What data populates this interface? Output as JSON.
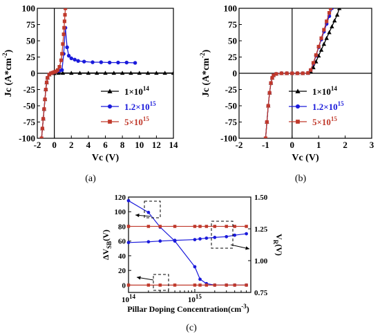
{
  "chart_data": [
    {
      "panel": "a",
      "type": "line",
      "caption": "(a)",
      "xlabel": "Vc (V)",
      "ylabel_base": "Jc (A*cm",
      "ylabel_sup": "-2",
      "ylabel_tail": ")",
      "xlim": [
        -2,
        14
      ],
      "ylim": [
        -100,
        100
      ],
      "x_ticks": [
        -2,
        0,
        2,
        4,
        6,
        8,
        10,
        12,
        14
      ],
      "y_ticks": [
        -100,
        -75,
        -50,
        -25,
        0,
        25,
        50,
        75,
        100
      ],
      "x_tick_labels": [
        "-2",
        "0",
        "2",
        "4",
        "6",
        "8",
        "10",
        "12",
        "14"
      ],
      "y_tick_labels": [
        "-100",
        "-75",
        "-50",
        "-25",
        "0",
        "25",
        "50",
        "75",
        "100"
      ],
      "legend": [
        {
          "base": "1×10",
          "sup": "14",
          "color": "#000000",
          "marker": "triangle"
        },
        {
          "base": "1.2×10",
          "sup": "15",
          "color": "#1a1adb",
          "marker": "circle"
        },
        {
          "base": "5×10",
          "sup": "15",
          "color": "#c0392b",
          "marker": "square"
        }
      ],
      "series": [
        {
          "color": "#000000",
          "marker": "triangle",
          "x": [
            -1.5,
            -1.4,
            -1.3,
            -1.2,
            -1.1,
            -1.0,
            -0.9,
            -0.8,
            -0.6,
            -0.4,
            -0.2,
            0,
            0.5,
            1,
            2,
            3,
            4,
            5,
            6,
            7,
            8,
            9,
            10,
            11,
            12,
            13,
            14
          ],
          "y": [
            -100,
            -85,
            -70,
            -55,
            -40,
            -25,
            -14,
            -7,
            -2,
            0,
            0,
            0,
            0.5,
            0.5,
            0.5,
            0.5,
            0.5,
            0.5,
            0.5,
            0.5,
            0.5,
            0.5,
            0.5,
            0.5,
            0.5,
            0.5,
            0.5
          ]
        },
        {
          "color": "#1a1adb",
          "marker": "circle",
          "x": [
            -1.5,
            -1.4,
            -1.3,
            -1.2,
            -1.1,
            -1.0,
            -0.9,
            -0.8,
            -0.6,
            -0.4,
            -0.2,
            0,
            0.3,
            0.6,
            0.9,
            1.1,
            1.3,
            1.5,
            1.7,
            2.0,
            2.4,
            2.8,
            3.5,
            4.5,
            5.5,
            6.5,
            7.5,
            8.5,
            9.5
          ],
          "y": [
            -100,
            -85,
            -70,
            -55,
            -40,
            -25,
            -14,
            -7,
            -2,
            0,
            1,
            2,
            3,
            4,
            5,
            30,
            70,
            40,
            27,
            23,
            21,
            19,
            18,
            17,
            17,
            16.5,
            16.5,
            16.5,
            16
          ]
        },
        {
          "color": "#c0392b",
          "marker": "square",
          "x": [
            -1.5,
            -1.4,
            -1.3,
            -1.2,
            -1.1,
            -1.0,
            -0.9,
            -0.8,
            -0.6,
            -0.4,
            -0.2,
            0,
            0.2,
            0.4,
            0.6,
            0.8,
            0.9,
            1.0,
            1.1,
            1.15,
            1.2,
            1.25,
            1.3
          ],
          "y": [
            -100,
            -85,
            -70,
            -55,
            -40,
            -25,
            -14,
            -7,
            -2,
            0,
            1,
            2,
            3,
            5,
            10,
            20,
            30,
            45,
            60,
            70,
            80,
            90,
            100
          ]
        }
      ]
    },
    {
      "panel": "b",
      "type": "line",
      "caption": "(b)",
      "xlabel": "Vc (V)",
      "ylabel_base": "Jc (A*cm",
      "ylabel_sup": "-2",
      "ylabel_tail": ")",
      "xlim": [
        -2,
        3
      ],
      "ylim": [
        -100,
        100
      ],
      "x_ticks": [
        -2,
        -1,
        0,
        1,
        2,
        3
      ],
      "y_ticks": [
        -100,
        -75,
        -50,
        -25,
        0,
        25,
        50,
        75,
        100
      ],
      "x_tick_labels": [
        "-2",
        "-1",
        "0",
        "1",
        "2",
        "3"
      ],
      "y_tick_labels": [
        "-100",
        "-75",
        "-50",
        "-25",
        "0",
        "25",
        "50",
        "75",
        "100"
      ],
      "legend": [
        {
          "base": "1×10",
          "sup": "14",
          "color": "#000000",
          "marker": "triangle"
        },
        {
          "base": "1.2×10",
          "sup": "15",
          "color": "#1a1adb",
          "marker": "circle"
        },
        {
          "base": "5×10",
          "sup": "15",
          "color": "#c0392b",
          "marker": "square"
        }
      ],
      "series": [
        {
          "color": "#000000",
          "marker": "triangle",
          "x": [
            -1.0,
            -0.95,
            -0.9,
            -0.85,
            -0.8,
            -0.75,
            -0.7,
            -0.6,
            -0.4,
            -0.2,
            0,
            0.2,
            0.4,
            0.6,
            0.7,
            0.8,
            0.9,
            1.0,
            1.1,
            1.2,
            1.3,
            1.4,
            1.5,
            1.6,
            1.7,
            1.78
          ],
          "y": [
            -100,
            -75,
            -50,
            -30,
            -15,
            -7,
            -3,
            -1,
            0,
            0,
            0,
            0,
            0,
            0.5,
            3,
            9,
            18,
            27,
            36,
            45,
            54,
            63,
            72,
            81,
            90,
            100
          ]
        },
        {
          "color": "#1a1adb",
          "marker": "circle",
          "x": [
            -1.0,
            -0.95,
            -0.9,
            -0.85,
            -0.8,
            -0.75,
            -0.7,
            -0.6,
            -0.4,
            -0.2,
            0,
            0.2,
            0.4,
            0.6,
            0.7,
            0.8,
            0.9,
            1.0,
            1.1,
            1.2,
            1.3,
            1.4,
            1.5
          ],
          "y": [
            -100,
            -75,
            -50,
            -30,
            -15,
            -7,
            -3,
            -1,
            0,
            0,
            0,
            0,
            0,
            0.5,
            5,
            15,
            27,
            40,
            52,
            64,
            76,
            88,
            100
          ]
        },
        {
          "color": "#c0392b",
          "marker": "square",
          "x": [
            -1.0,
            -0.95,
            -0.9,
            -0.85,
            -0.8,
            -0.75,
            -0.7,
            -0.6,
            -0.4,
            -0.2,
            0,
            0.2,
            0.4,
            0.6,
            0.7,
            0.8,
            0.9,
            1.0,
            1.1,
            1.2,
            1.3,
            1.4,
            1.45
          ],
          "y": [
            -100,
            -75,
            -50,
            -30,
            -15,
            -7,
            -3,
            -1,
            0,
            0,
            0,
            0,
            0,
            0.5,
            5,
            16,
            28,
            41,
            54,
            67,
            80,
            93,
            100
          ]
        }
      ]
    },
    {
      "panel": "c",
      "type": "line",
      "caption": "(c)",
      "xlabel_base": "Pillar Doping Concentration(cm",
      "xlabel_sup": "-3",
      "xlabel_tail": ")",
      "ylabel_left": "ΔV",
      "ylabel_left_sub": "SB",
      "ylabel_left_tail": "(V)",
      "ylabel_right": "V",
      "ylabel_right_sub": "R",
      "ylabel_right_tail": "(V)",
      "x_scale": "log",
      "xlim": [
        100000000000000.0,
        7000000000000000.0
      ],
      "ylim_left": [
        -10,
        120
      ],
      "ylim_right": [
        0.75,
        1.5
      ],
      "x_ticks": [
        100000000000000.0,
        1000000000000000.0
      ],
      "x_tick_bases": [
        "10",
        "10"
      ],
      "x_tick_sups": [
        "14",
        "15"
      ],
      "y_ticks_left": [
        0,
        20,
        40,
        60,
        80,
        100,
        120
      ],
      "y_tick_labels_left": [
        "0",
        "20",
        "40",
        "60",
        "80",
        "100",
        "120"
      ],
      "y_ticks_right": [
        0.75,
        1.0,
        1.25,
        1.5
      ],
      "y_tick_labels_right": [
        "0.75",
        "1.00",
        "1.25",
        "1.50"
      ],
      "series": [
        {
          "color": "#1a1adb",
          "marker": "circle",
          "axis": "left",
          "x": [
            100000000000000.0,
            200000000000000.0,
            300000000000000.0,
            500000000000000.0,
            1000000000000000.0,
            1200000000000000.0,
            1500000000000000.0,
            2000000000000000.0,
            3000000000000000.0,
            4000000000000000.0,
            6000000000000000.0
          ],
          "y": [
            115,
            99,
            79,
            60,
            25,
            8,
            2,
            0,
            0,
            0,
            0
          ]
        },
        {
          "color": "#1a1adb",
          "marker": "circle",
          "axis": "left",
          "x": [
            100000000000000.0,
            200000000000000.0,
            300000000000000.0,
            500000000000000.0,
            1000000000000000.0,
            1200000000000000.0,
            1500000000000000.0,
            2000000000000000.0,
            3000000000000000.0,
            4000000000000000.0,
            6000000000000000.0
          ],
          "y": [
            58,
            59,
            60,
            61,
            62,
            63,
            64,
            65,
            66,
            68,
            70
          ]
        },
        {
          "color": "#c0392b",
          "marker": "square",
          "axis": "left",
          "x": [
            100000000000000.0,
            200000000000000.0,
            300000000000000.0,
            500000000000000.0,
            1000000000000000.0,
            1200000000000000.0,
            1500000000000000.0,
            2000000000000000.0,
            3000000000000000.0,
            4000000000000000.0,
            6000000000000000.0
          ],
          "y": [
            80,
            80,
            80,
            80,
            80,
            80,
            80,
            80,
            80,
            80,
            80
          ]
        },
        {
          "color": "#c0392b",
          "marker": "square",
          "axis": "left",
          "x": [
            100000000000000.0,
            200000000000000.0,
            300000000000000.0,
            500000000000000.0,
            1000000000000000.0,
            1200000000000000.0,
            1500000000000000.0,
            2000000000000000.0,
            3000000000000000.0,
            4000000000000000.0,
            6000000000000000.0
          ],
          "y": [
            0,
            0,
            0,
            0,
            0,
            0,
            0,
            0,
            0,
            0,
            0
          ]
        }
      ]
    }
  ]
}
